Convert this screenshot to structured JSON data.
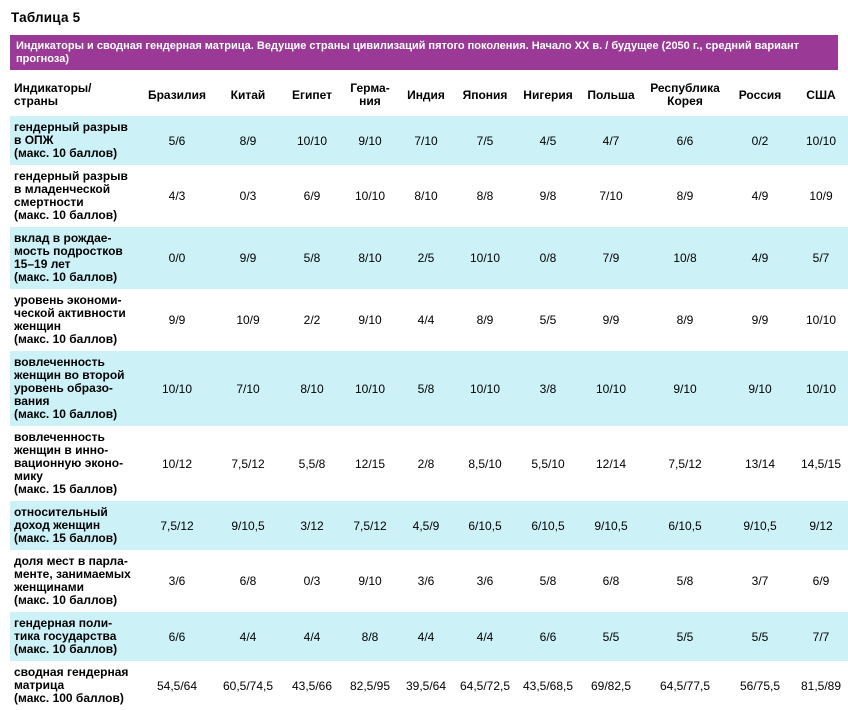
{
  "page": {
    "title": "Таблица 5"
  },
  "banner": {
    "text": "Индикаторы и сводная гендерная матрица. Ведущие страны цивилизаций пятого поколения. Начало XX в. / будущее (2050 г., средний вариант прогноза)"
  },
  "colors": {
    "banner_bg": "#9a3a96",
    "band_bg": "#ccf2f8",
    "alt_bg": "#ffffff",
    "text": "#000000",
    "banner_text": "#ffffff"
  },
  "table": {
    "row_header_label": "Индикаторы/\nстраны",
    "columns": [
      "Бразилия",
      "Китай",
      "Египет",
      "Герма-\nния",
      "Индия",
      "Япония",
      "Нигерия",
      "Польша",
      "Республика\nКорея",
      "Россия",
      "США"
    ],
    "rows": [
      {
        "label": "гендерный разрыв\nв ОПЖ\n(макс. 10 баллов)",
        "values": [
          "5/6",
          "8/9",
          "10/10",
          "9/10",
          "7/10",
          "7/5",
          "4/5",
          "4/7",
          "6/6",
          "0/2",
          "10/10"
        ]
      },
      {
        "label": "гендерный разрыв\nв младенческой\nсмертности\n(макс. 10 баллов)",
        "values": [
          "4/3",
          "0/3",
          "6/9",
          "10/10",
          "8/10",
          "8/8",
          "9/8",
          "7/10",
          "8/9",
          "4/9",
          "10/9"
        ]
      },
      {
        "label": "вклад в рождае-\nмость подростков\n15–19 лет\n(макс. 10 баллов)",
        "values": [
          "0/0",
          "9/9",
          "5/8",
          "8/10",
          "2/5",
          "10/10",
          "0/8",
          "7/9",
          "10/8",
          "4/9",
          "5/7"
        ]
      },
      {
        "label": "уровень экономи-\nческой активности\nженщин\n(макс. 10 баллов)",
        "values": [
          "9/9",
          "10/9",
          "2/2",
          "9/10",
          "4/4",
          "8/9",
          "5/5",
          "9/9",
          "8/9",
          "9/9",
          "10/10"
        ]
      },
      {
        "label": "вовлеченность\nженщин во второй\nуровень образо-\nвания\n(макс. 10 баллов)",
        "values": [
          "10/10",
          "7/10",
          "8/10",
          "10/10",
          "5/8",
          "10/10",
          "3/8",
          "10/10",
          "9/10",
          "9/10",
          "10/10"
        ]
      },
      {
        "label": "вовлеченность\nженщин в инно-\nвационную эконо-\nмику\n(макс. 15 баллов)",
        "values": [
          "10/12",
          "7,5/12",
          "5,5/8",
          "12/15",
          "2/8",
          "8,5/10",
          "5,5/10",
          "12/14",
          "7,5/12",
          "13/14",
          "14,5/15"
        ]
      },
      {
        "label": "относительный\nдоход женщин\n(макс. 15 баллов)",
        "values": [
          "7,5/12",
          "9/10,5",
          "3/12",
          "7,5/12",
          "4,5/9",
          "6/10,5",
          "6/10,5",
          "9/10,5",
          "6/10,5",
          "9/10,5",
          "9/12"
        ]
      },
      {
        "label": "доля мест в парла-\nменте, занимаемых\nженщинами\n(макс. 10 баллов)",
        "values": [
          "3/6",
          "6/8",
          "0/3",
          "9/10",
          "3/6",
          "3/6",
          "5/8",
          "6/8",
          "5/8",
          "3/7",
          "6/9"
        ]
      },
      {
        "label": "гендерная поли-\nтика государства\n(макс. 10 баллов)",
        "values": [
          "6/6",
          "4/4",
          "4/4",
          "8/8",
          "4/4",
          "4/4",
          "6/6",
          "5/5",
          "5/5",
          "5/5",
          "7/7"
        ]
      },
      {
        "label": "сводная гендерная\nматрица\n(макс. 100 баллов)",
        "values": [
          "54,5/64",
          "60,5/74,5",
          "43,5/66",
          "82,5/95",
          "39,5/64",
          "64,5/72,5",
          "43,5/68,5",
          "69/82,5",
          "64,5/77,5",
          "56/75,5",
          "81,5/89"
        ]
      }
    ]
  }
}
